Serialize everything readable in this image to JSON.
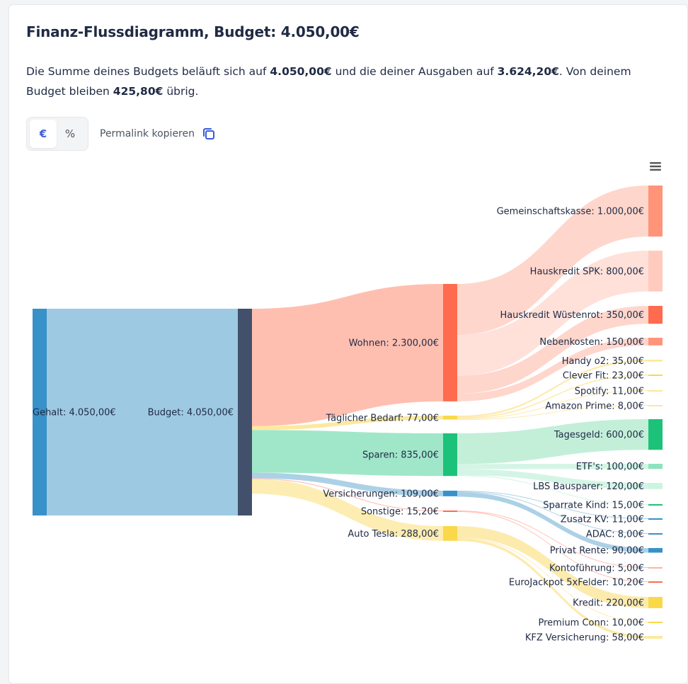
{
  "header": {
    "title": "Finanz-Flussdiagramm, Budget: 4.050,00€",
    "summary_part1": "Die Summe deines Budgets beläuft sich auf ",
    "summary_budget": "4.050,00€",
    "summary_part2": " und die deiner Ausgaben auf ",
    "summary_expenses": "3.624,20€",
    "summary_part3": ". Von deinem Budget bleiben ",
    "summary_remaining": "425,80€",
    "summary_part4": " übrig."
  },
  "controls": {
    "euro_label": "€",
    "percent_label": "%",
    "permalink_label": "Permalink kopieren",
    "permalink_icon": "copy-icon",
    "menu_icon": "hamburger-menu-icon"
  },
  "colors": {
    "accent": "#3b5bdb",
    "income": "#3891c9",
    "budget": "#42506b",
    "wohnen": "#ff6b4e",
    "bedarf": "#f9d949",
    "sparen": "#1dc27a",
    "versicherungen": "#3891c9",
    "sonstige": "#ff6b4e",
    "auto": "#f9d949"
  },
  "chart_data": {
    "type": "sankey",
    "unit": "€",
    "nodes": [
      {
        "id": "gehalt",
        "label": "Gehalt: 4.050,00€",
        "value": 4050.0
      },
      {
        "id": "budget",
        "label": "Budget: 4.050,00€",
        "value": 4050.0
      },
      {
        "id": "wohnen",
        "label": "Wohnen: 2.300,00€",
        "value": 2300.0
      },
      {
        "id": "bedarf",
        "label": "Täglicher Bedarf: 77,00€",
        "value": 77.0
      },
      {
        "id": "sparen",
        "label": "Sparen: 835,00€",
        "value": 835.0
      },
      {
        "id": "versicherungen",
        "label": "Versicherungen: 109,00€",
        "value": 109.0
      },
      {
        "id": "sonstige",
        "label": "Sonstige: 15,20€",
        "value": 15.2
      },
      {
        "id": "auto",
        "label": "Auto Tesla: 288,00€",
        "value": 288.0
      },
      {
        "id": "gemeinschaft",
        "label": "Gemeinschaftskasse: 1.000,00€",
        "value": 1000.0
      },
      {
        "id": "hausspk",
        "label": "Hauskredit SPK: 800,00€",
        "value": 800.0
      },
      {
        "id": "hauswue",
        "label": "Hauskredit Wüstenrot: 350,00€",
        "value": 350.0
      },
      {
        "id": "nebenkosten",
        "label": "Nebenkosten: 150,00€",
        "value": 150.0
      },
      {
        "id": "handy",
        "label": "Handy o2: 35,00€",
        "value": 35.0
      },
      {
        "id": "clever",
        "label": "Clever Fit: 23,00€",
        "value": 23.0
      },
      {
        "id": "spotify",
        "label": "Spotify: 11,00€",
        "value": 11.0
      },
      {
        "id": "amazon",
        "label": "Amazon Prime: 8,00€",
        "value": 8.0
      },
      {
        "id": "tagesgeld",
        "label": "Tagesgeld: 600,00€",
        "value": 600.0
      },
      {
        "id": "etf",
        "label": "ETF's: 100,00€",
        "value": 100.0
      },
      {
        "id": "lbs",
        "label": "LBS Bausparer: 120,00€",
        "value": 120.0
      },
      {
        "id": "sparrate",
        "label": "Sparrate Kind: 15,00€",
        "value": 15.0
      },
      {
        "id": "zusatzkv",
        "label": "Zusatz KV: 11,00€",
        "value": 11.0
      },
      {
        "id": "adac",
        "label": "ADAC: 8,00€",
        "value": 8.0
      },
      {
        "id": "privatrente",
        "label": "Privat Rente: 90,00€",
        "value": 90.0
      },
      {
        "id": "kontofuehrung",
        "label": "Kontoführung: 5,00€",
        "value": 5.0
      },
      {
        "id": "eurojackpot",
        "label": "EuroJackpot 5xFelder: 10,20€",
        "value": 10.2
      },
      {
        "id": "kredit",
        "label": "Kredit: 220,00€",
        "value": 220.0
      },
      {
        "id": "premium",
        "label": "Premium Conn: 10,00€",
        "value": 10.0
      },
      {
        "id": "kfz",
        "label": "KFZ Versicherung: 58,00€",
        "value": 58.0
      }
    ],
    "links": [
      {
        "source": "gehalt",
        "target": "budget",
        "value": 4050.0
      },
      {
        "source": "budget",
        "target": "wohnen",
        "value": 2300.0
      },
      {
        "source": "budget",
        "target": "bedarf",
        "value": 77.0
      },
      {
        "source": "budget",
        "target": "sparen",
        "value": 835.0
      },
      {
        "source": "budget",
        "target": "versicherungen",
        "value": 109.0
      },
      {
        "source": "budget",
        "target": "sonstige",
        "value": 15.2
      },
      {
        "source": "budget",
        "target": "auto",
        "value": 288.0
      },
      {
        "source": "wohnen",
        "target": "gemeinschaft",
        "value": 1000.0
      },
      {
        "source": "wohnen",
        "target": "hausspk",
        "value": 800.0
      },
      {
        "source": "wohnen",
        "target": "hauswue",
        "value": 350.0
      },
      {
        "source": "wohnen",
        "target": "nebenkosten",
        "value": 150.0
      },
      {
        "source": "bedarf",
        "target": "handy",
        "value": 35.0
      },
      {
        "source": "bedarf",
        "target": "clever",
        "value": 23.0
      },
      {
        "source": "bedarf",
        "target": "spotify",
        "value": 11.0
      },
      {
        "source": "bedarf",
        "target": "amazon",
        "value": 8.0
      },
      {
        "source": "sparen",
        "target": "tagesgeld",
        "value": 600.0
      },
      {
        "source": "sparen",
        "target": "etf",
        "value": 100.0
      },
      {
        "source": "sparen",
        "target": "lbs",
        "value": 120.0
      },
      {
        "source": "sparen",
        "target": "sparrate",
        "value": 15.0
      },
      {
        "source": "versicherungen",
        "target": "zusatzkv",
        "value": 11.0
      },
      {
        "source": "versicherungen",
        "target": "adac",
        "value": 8.0
      },
      {
        "source": "versicherungen",
        "target": "privatrente",
        "value": 90.0
      },
      {
        "source": "sonstige",
        "target": "kontofuehrung",
        "value": 5.0
      },
      {
        "source": "sonstige",
        "target": "eurojackpot",
        "value": 10.2
      },
      {
        "source": "auto",
        "target": "kredit",
        "value": 220.0
      },
      {
        "source": "auto",
        "target": "premium",
        "value": 10.0
      },
      {
        "source": "auto",
        "target": "kfz",
        "value": 58.0
      }
    ]
  }
}
